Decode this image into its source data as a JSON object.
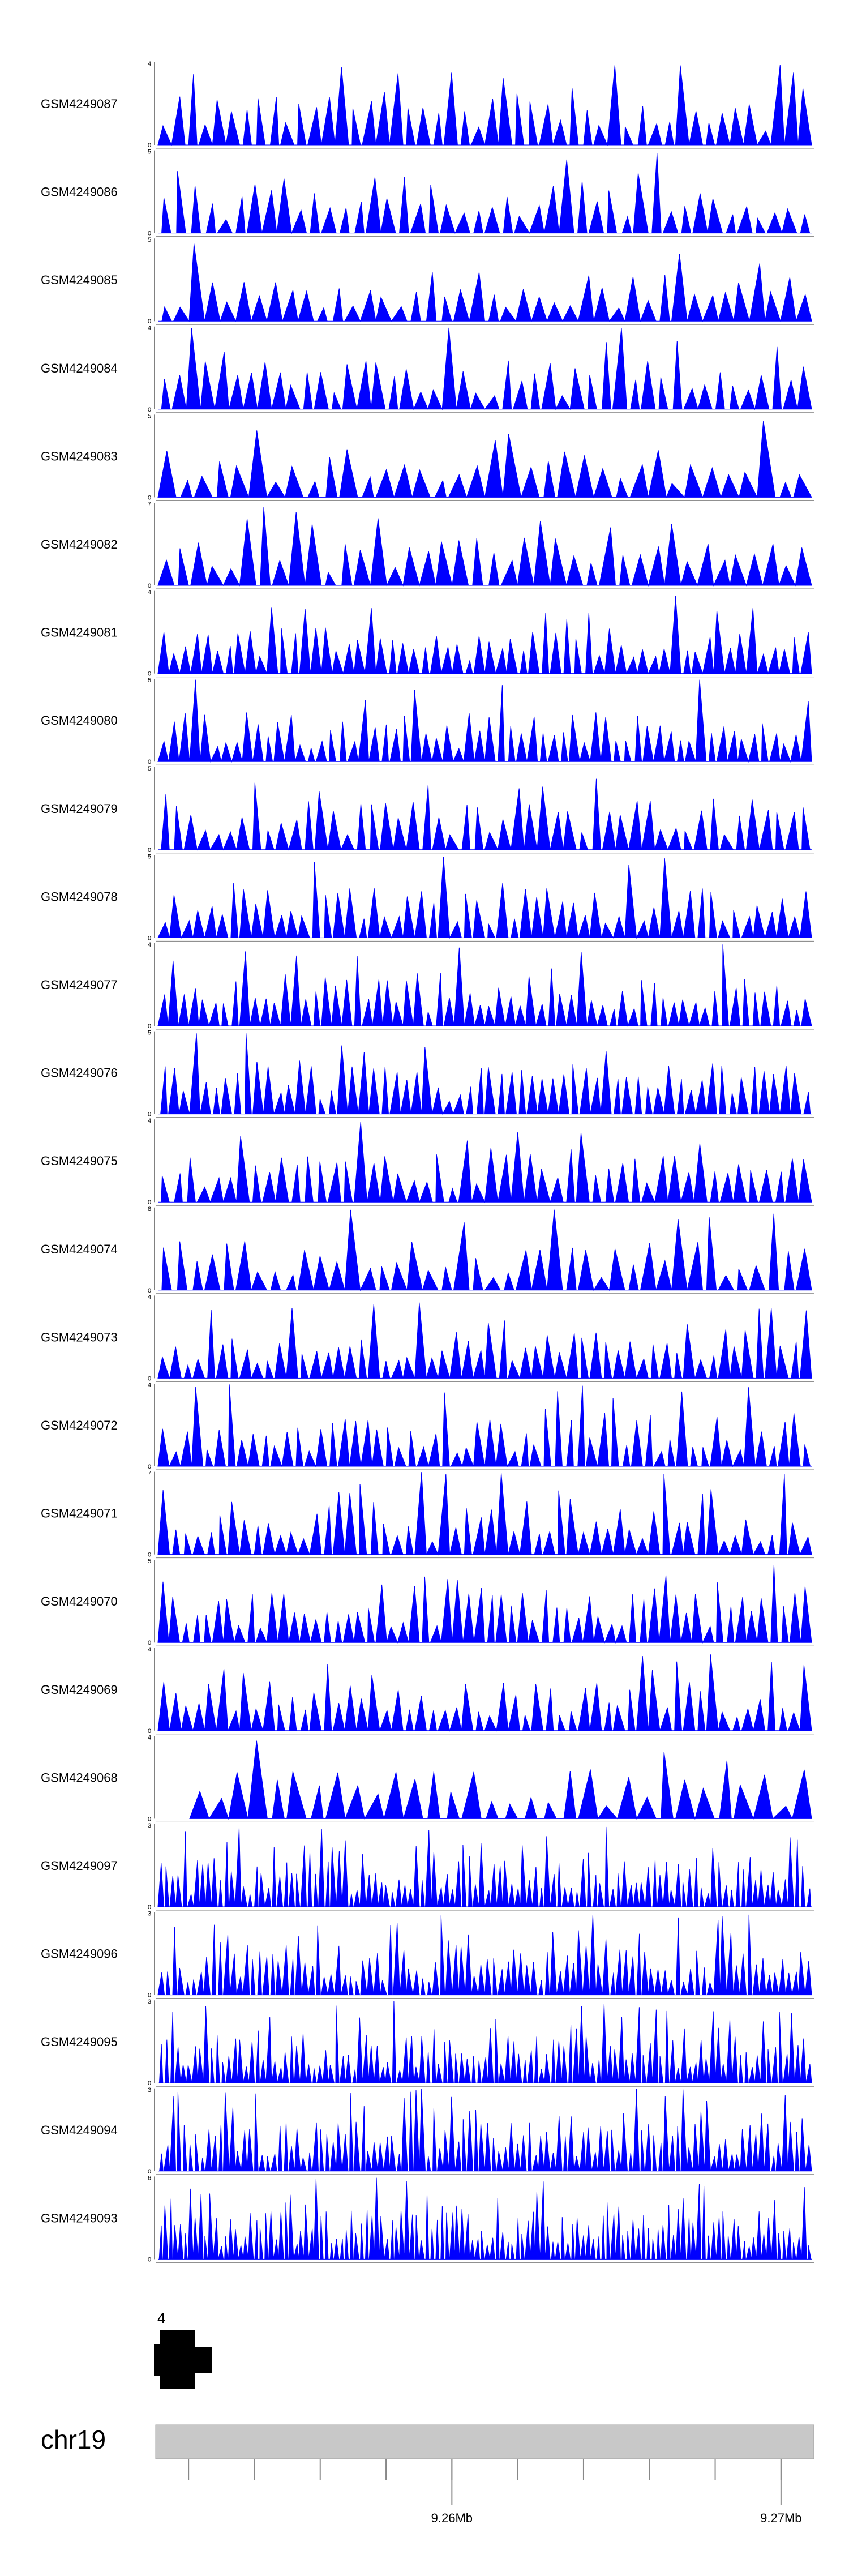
{
  "chart_data": {
    "type": "area",
    "fill_color": "#0000ff",
    "separator_color": "#808080",
    "x_range_mb": [
      9.251,
      9.271
    ],
    "samples": [
      {
        "name": "GSM4249087",
        "ymax": 4,
        "seed": 11,
        "n": 48
      },
      {
        "name": "GSM4249086",
        "ymax": 5,
        "seed": 12,
        "n": 44
      },
      {
        "name": "GSM4249085",
        "ymax": 5,
        "seed": 13,
        "n": 42
      },
      {
        "name": "GSM4249084",
        "ymax": 4,
        "seed": 14,
        "n": 46
      },
      {
        "name": "GSM4249083",
        "ymax": 5,
        "seed": 15,
        "n": 36
      },
      {
        "name": "GSM4249082",
        "ymax": 7,
        "seed": 16,
        "n": 40
      },
      {
        "name": "GSM4249081",
        "ymax": 4,
        "seed": 17,
        "n": 60
      },
      {
        "name": "GSM4249080",
        "ymax": 5,
        "seed": 18,
        "n": 62
      },
      {
        "name": "GSM4249079",
        "ymax": 5,
        "seed": 19,
        "n": 50
      },
      {
        "name": "GSM4249078",
        "ymax": 5,
        "seed": 20,
        "n": 56
      },
      {
        "name": "GSM4249077",
        "ymax": 4,
        "seed": 21,
        "n": 64
      },
      {
        "name": "GSM4249076",
        "ymax": 5,
        "seed": 22,
        "n": 62
      },
      {
        "name": "GSM4249075",
        "ymax": 4,
        "seed": 23,
        "n": 50
      },
      {
        "name": "GSM4249074",
        "ymax": 8,
        "seed": 24,
        "n": 42
      },
      {
        "name": "GSM4249073",
        "ymax": 4,
        "seed": 25,
        "n": 56
      },
      {
        "name": "GSM4249072",
        "ymax": 4,
        "seed": 26,
        "n": 58
      },
      {
        "name": "GSM4249071",
        "ymax": 7,
        "seed": 27,
        "n": 56
      },
      {
        "name": "GSM4249070",
        "ymax": 5,
        "seed": 28,
        "n": 60
      },
      {
        "name": "GSM4249069",
        "ymax": 4,
        "seed": 29,
        "n": 56
      },
      {
        "name": "GSM4249068",
        "ymax": 4,
        "seed": 30,
        "n": 32
      },
      {
        "name": "GSM4249097",
        "ymax": 3,
        "seed": 31,
        "n": 110
      },
      {
        "name": "GSM4249096",
        "ymax": 3,
        "seed": 32,
        "n": 100
      },
      {
        "name": "GSM4249095",
        "ymax": 3,
        "seed": 33,
        "n": 115
      },
      {
        "name": "GSM4249094",
        "ymax": 3,
        "seed": 34,
        "n": 110
      },
      {
        "name": "GSM4249093",
        "ymax": 6,
        "seed": 35,
        "n": 130
      }
    ],
    "gene_track": {
      "label": "4"
    },
    "ideogram": {
      "chromosome": "chr19",
      "tick_labels": [
        {
          "mb": 9.26,
          "label": "9.26Mb"
        },
        {
          "mb": 9.27,
          "label": "9.27Mb"
        }
      ],
      "minor_ticks_mb": [
        9.252,
        9.254,
        9.256,
        9.258,
        9.26,
        9.262,
        9.264,
        9.266,
        9.268,
        9.27
      ]
    }
  }
}
